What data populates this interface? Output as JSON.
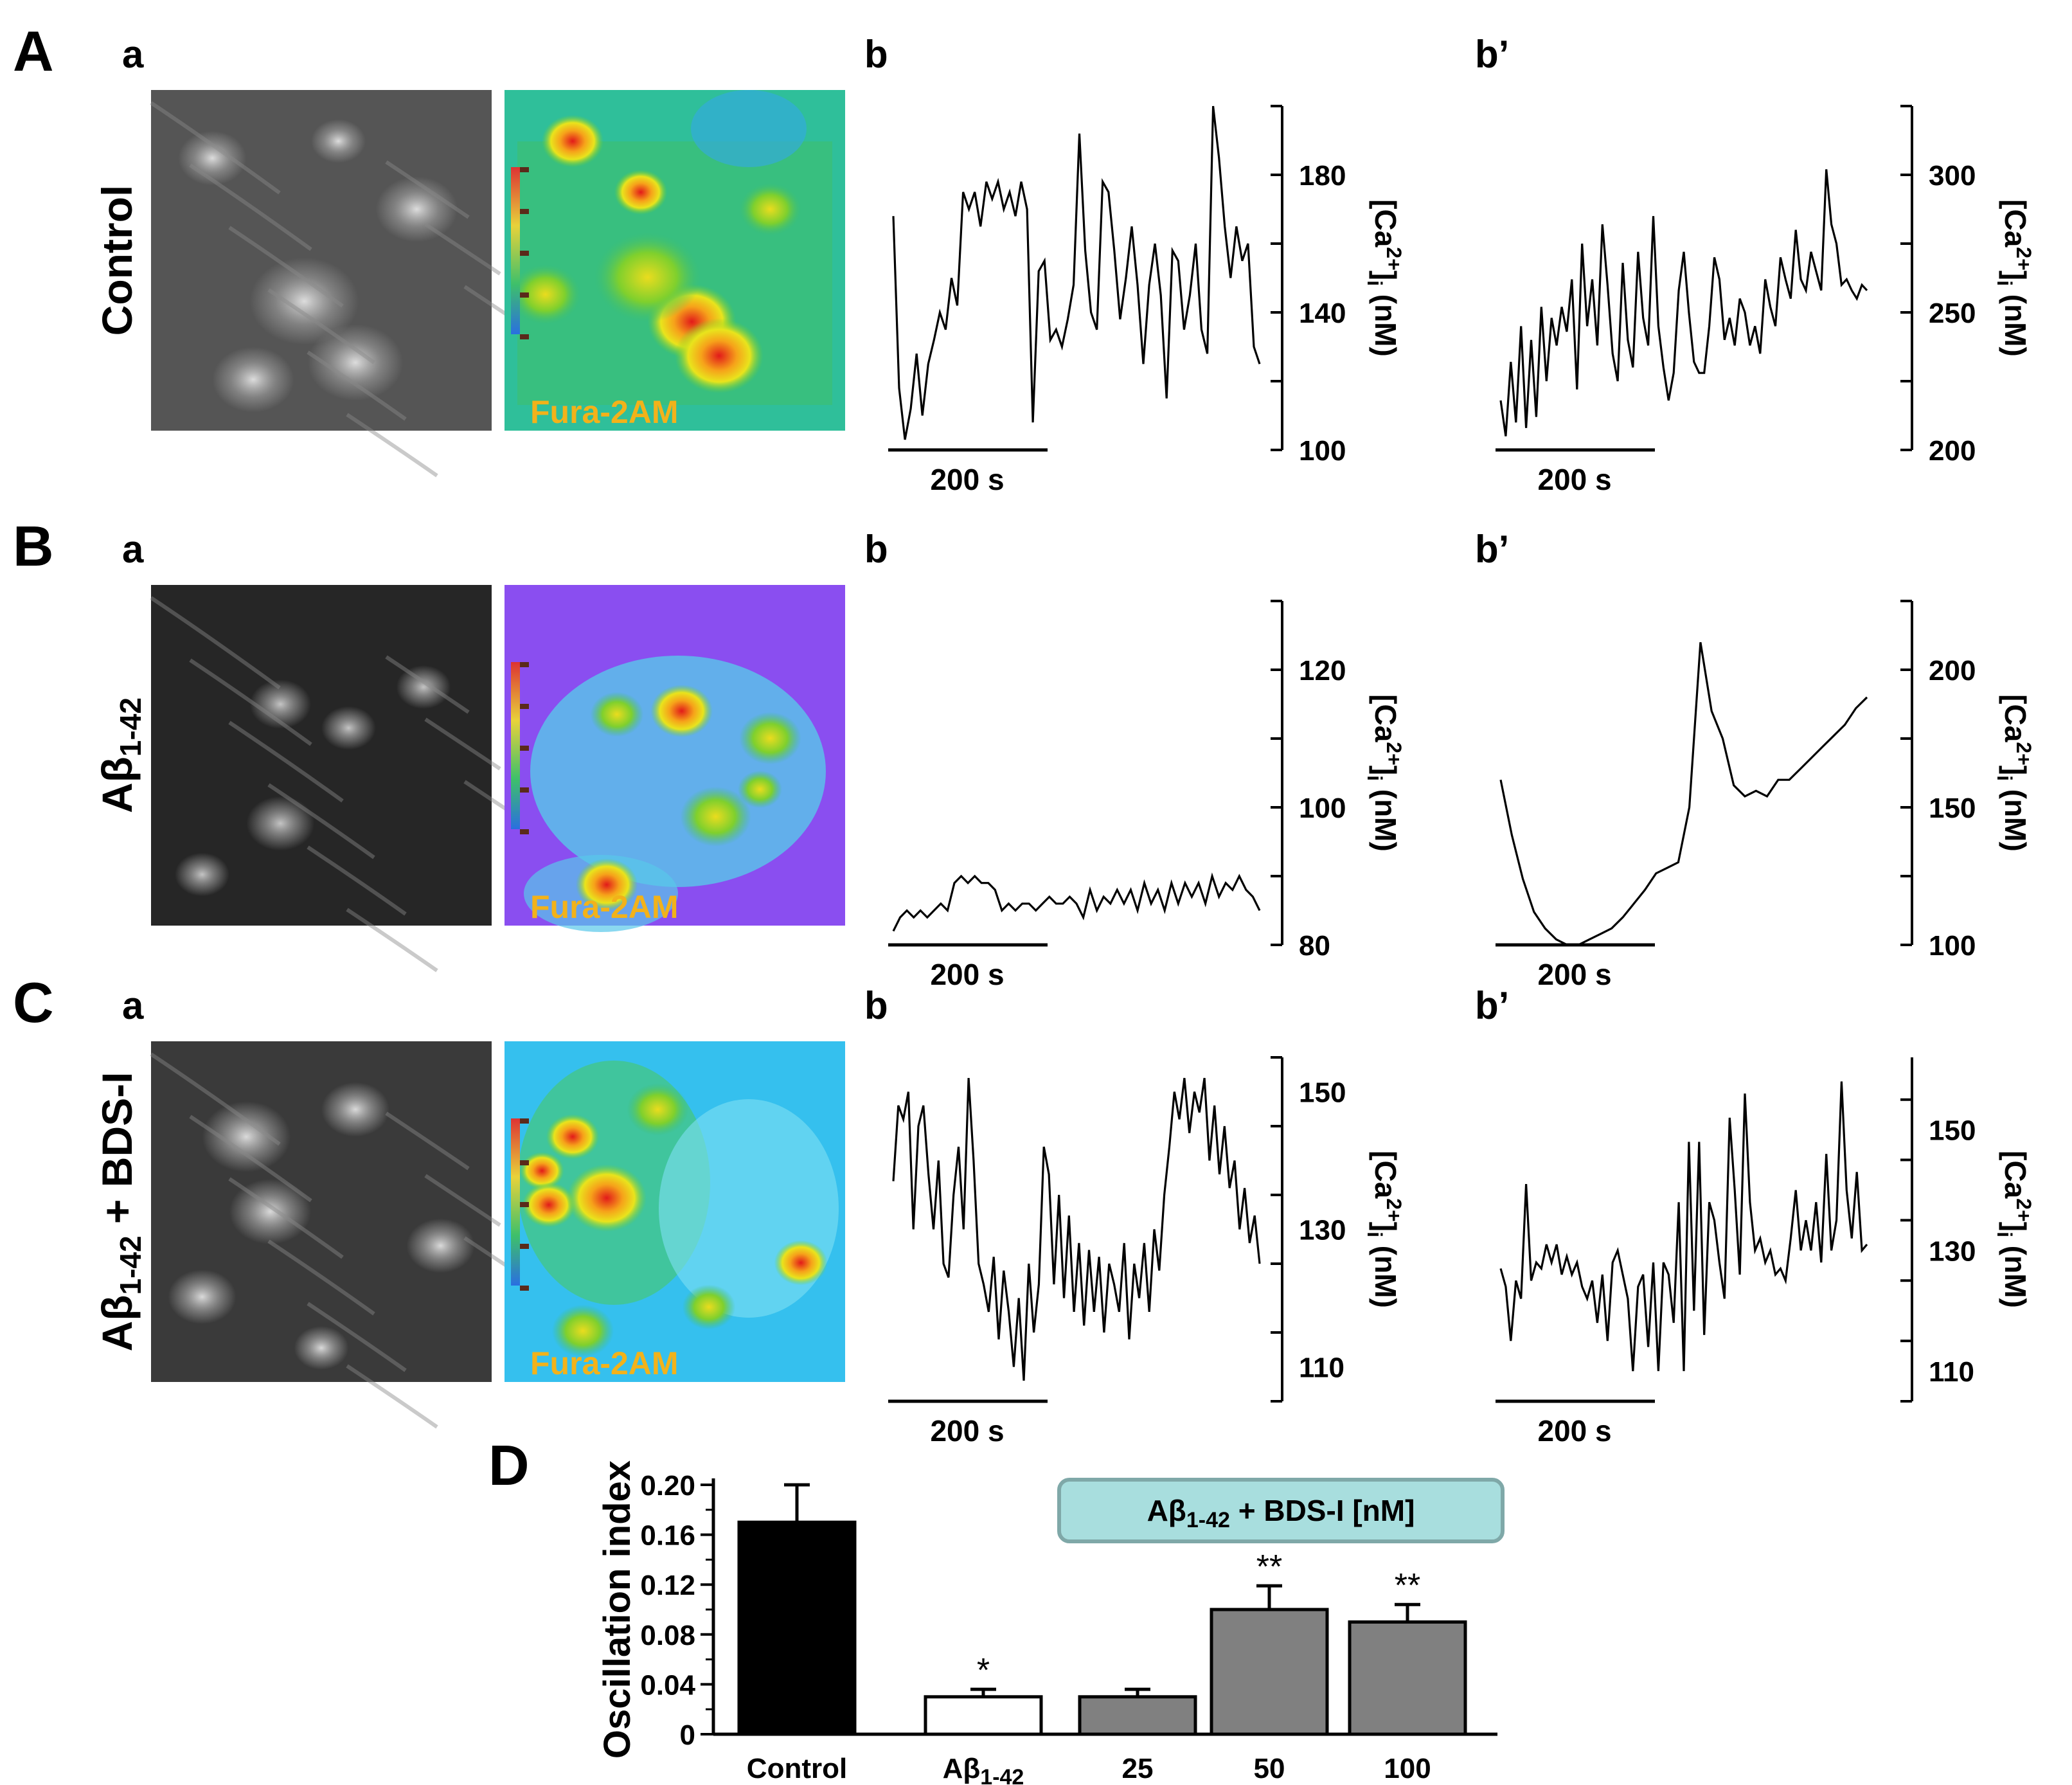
{
  "rows": [
    {
      "letter": "A",
      "sub_a": "a",
      "sub_b": "b",
      "sub_bp": "b’",
      "condition": "Control",
      "condition_sub": "",
      "overlay": "Fura-2AM",
      "micro_tone": "bright",
      "pseudo_scheme": "control",
      "trace_b": {
        "yticks": [
          "100",
          "140",
          "180"
        ],
        "ymin": 100,
        "ymax": 200,
        "values": [
          168,
          118,
          103,
          112,
          128,
          110,
          125,
          132,
          140,
          135,
          150,
          142,
          175,
          170,
          175,
          165,
          178,
          173,
          178,
          170,
          175,
          168,
          178,
          170,
          108,
          152,
          155,
          132,
          135,
          130,
          138,
          148,
          192,
          158,
          140,
          135,
          178,
          175,
          158,
          138,
          150,
          165,
          148,
          125,
          148,
          160,
          145,
          115,
          158,
          155,
          135,
          145,
          160,
          135,
          128,
          200,
          185,
          165,
          150,
          165,
          155,
          160,
          130,
          125
        ],
        "scale": "200 s"
      },
      "trace_bp": {
        "yticks": [
          "200",
          "250",
          "300"
        ],
        "ymin": 200,
        "ymax": 325,
        "values": [
          218,
          205,
          232,
          210,
          245,
          208,
          240,
          212,
          252,
          225,
          248,
          238,
          252,
          243,
          262,
          222,
          275,
          245,
          262,
          238,
          282,
          260,
          235,
          225,
          268,
          240,
          230,
          272,
          248,
          238,
          285,
          245,
          230,
          218,
          228,
          258,
          272,
          250,
          232,
          228,
          228,
          245,
          270,
          262,
          240,
          248,
          238,
          255,
          250,
          238,
          245,
          235,
          262,
          252,
          245,
          270,
          262,
          255,
          280,
          262,
          258,
          272,
          265,
          258,
          302,
          282,
          275,
          260,
          262,
          258,
          255,
          260,
          258
        ],
        "scale": "200 s"
      },
      "ylabel": "[Ca2+]i (nM)"
    },
    {
      "letter": "B",
      "sub_a": "a",
      "sub_b": "b",
      "sub_bp": "b’",
      "condition": "Aβ",
      "condition_sub": "1-42",
      "overlay": "Fura-2AM",
      "micro_tone": "dark",
      "pseudo_scheme": "abeta",
      "trace_b": {
        "yticks": [
          "80",
          "100",
          "120"
        ],
        "ymin": 80,
        "ymax": 130,
        "values": [
          82,
          84,
          85,
          84,
          85,
          84,
          85,
          86,
          85,
          89,
          90,
          89,
          90,
          89,
          89,
          88,
          85,
          86,
          85,
          86,
          86,
          85,
          86,
          87,
          86,
          86,
          87,
          86,
          84,
          88,
          85,
          87,
          86,
          88,
          86,
          88,
          85,
          89,
          86,
          88,
          85,
          89,
          86,
          89,
          87,
          89,
          86,
          90,
          87,
          89,
          88,
          90,
          88,
          87,
          85
        ],
        "scale": "200 s"
      },
      "trace_bp": {
        "yticks": [
          "100",
          "150",
          "200"
        ],
        "ymin": 100,
        "ymax": 225,
        "values": [
          160,
          140,
          124,
          112,
          106,
          102,
          100,
          100,
          102,
          104,
          106,
          110,
          115,
          120,
          126,
          128,
          130,
          150,
          210,
          185,
          175,
          158,
          154,
          156,
          154,
          160,
          160,
          164,
          168,
          172,
          176,
          180,
          186,
          190
        ],
        "scale": "200 s"
      },
      "ylabel": "[Ca2+]i (nM)"
    },
    {
      "letter": "C",
      "sub_a": "a",
      "sub_b": "b",
      "sub_bp": "b’",
      "condition": "Aβ",
      "condition_sub": "1-42",
      "condition_suffix": " + BDS-I",
      "overlay": "Fura-2AM",
      "micro_tone": "mid",
      "pseudo_scheme": "bds",
      "trace_b": {
        "yticks": [
          "110",
          "130",
          "150"
        ],
        "ymin": 105,
        "ymax": 155,
        "values": [
          137,
          148,
          146,
          150,
          130,
          145,
          148,
          138,
          130,
          140,
          125,
          123,
          135,
          142,
          130,
          152,
          140,
          125,
          122,
          118,
          126,
          114,
          124,
          118,
          110,
          120,
          108,
          125,
          115,
          122,
          142,
          138,
          122,
          135,
          120,
          132,
          118,
          128,
          116,
          127,
          118,
          126,
          115,
          125,
          122,
          118,
          128,
          114,
          125,
          120,
          128,
          118,
          130,
          124,
          135,
          142,
          150,
          146,
          152,
          144,
          150,
          147,
          152,
          140,
          148,
          138,
          145,
          136,
          140,
          130,
          136,
          128,
          132,
          125
        ],
        "scale": "200 s"
      },
      "trace_bp": {
        "yticks": [
          "110",
          "130",
          "150"
        ],
        "ymin": 105,
        "ymax": 162,
        "values": [
          127,
          124,
          115,
          125,
          122,
          141,
          125,
          128,
          127,
          131,
          128,
          131,
          126,
          129,
          126,
          128,
          124,
          122,
          125,
          118,
          126,
          115,
          128,
          130,
          126,
          122,
          110,
          124,
          126,
          114,
          128,
          110,
          128,
          126,
          118,
          138,
          110,
          148,
          120,
          148,
          116,
          138,
          135,
          128,
          122,
          152,
          140,
          126,
          156,
          138,
          130,
          132,
          128,
          130,
          126,
          127,
          125,
          132,
          140,
          130,
          135,
          130,
          138,
          128,
          146,
          130,
          135,
          158,
          140,
          132,
          143,
          130,
          131
        ],
        "scale": "200 s"
      },
      "ylabel": "[Ca2+]i (nM)"
    }
  ],
  "ca_label": {
    "prefix": "[Ca",
    "sup": "2+",
    "close": "]",
    "sub": "i",
    "unit": " (nM)"
  },
  "panel_d": {
    "letter": "D",
    "bracket_label_prefix": "Aβ",
    "bracket_label_sub": "1-42",
    "bracket_label_suffix": " + BDS-I [nM]",
    "bracket_color": "#a8dede",
    "yticks": [
      "0",
      "0.04",
      "0.08",
      "0.12",
      "0.16",
      "0.20"
    ]
  },
  "chart_data": {
    "type": "bar",
    "title": "",
    "xlabel": "",
    "ylabel": "Oscillation  index",
    "ylim": [
      0,
      0.2
    ],
    "categories": [
      "Control",
      "Aβ1-42",
      "25",
      "50",
      "100"
    ],
    "category_display": [
      {
        "main": "Control",
        "sub": ""
      },
      {
        "main": "Aβ",
        "sub": "1-42"
      },
      {
        "main": "25",
        "sub": ""
      },
      {
        "main": "50",
        "sub": ""
      },
      {
        "main": "100",
        "sub": ""
      }
    ],
    "values": [
      0.17,
      0.03,
      0.03,
      0.1,
      0.09
    ],
    "errors": [
      0.03,
      0.006,
      0.006,
      0.019,
      0.014
    ],
    "significance": [
      "",
      "*",
      "",
      "**",
      "**"
    ],
    "bar_colors": [
      "#000000",
      "#ffffff",
      "#808080",
      "#808080",
      "#808080"
    ]
  }
}
